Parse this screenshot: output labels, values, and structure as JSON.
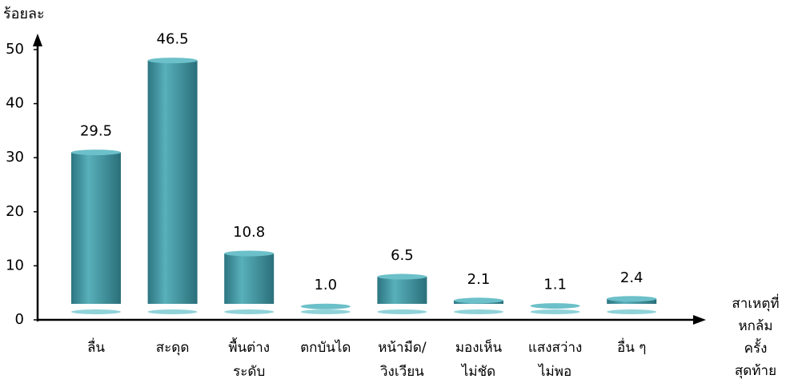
{
  "chart_data": {
    "type": "bar",
    "y_label": "ร้อยละ",
    "x_label": "สาเหตุที่หกล้ม\nครั้งสุดท้าย",
    "categories": [
      "ลื่น",
      "สะดุด",
      "พื้นต่าง\nระดับ",
      "ตกบันได",
      "หน้ามืด/\nวิงเวียน",
      "มองเห็น\nไม่ชัด",
      "แสงสว่าง\nไม่พอ",
      "อื่น ๆ"
    ],
    "values": [
      29.5,
      46.5,
      10.8,
      1.0,
      6.5,
      2.1,
      1.1,
      2.4
    ],
    "value_labels": [
      "29.5",
      "46.5",
      "10.8",
      "1.0",
      "6.5",
      "2.1",
      "1.1",
      "2.4"
    ],
    "color": "#3b8f9b",
    "ylim": [
      0,
      50
    ],
    "yticks": [
      0,
      10,
      20,
      30,
      40,
      50
    ]
  }
}
